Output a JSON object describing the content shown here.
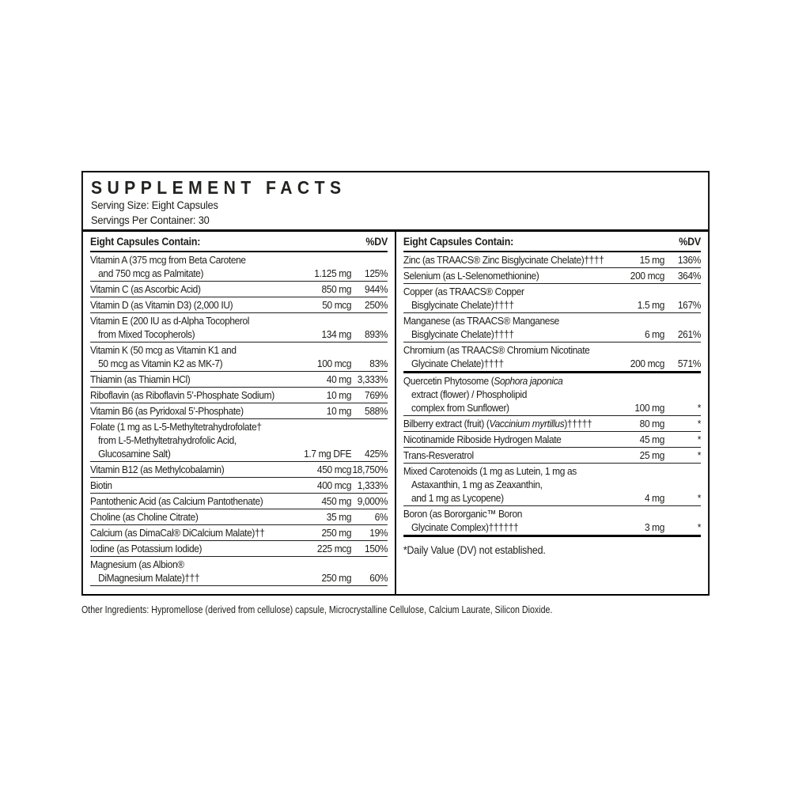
{
  "panel": {
    "title": "SUPPLEMENT FACTS",
    "serving_size": "Serving Size: Eight Capsules",
    "servings": "Servings Per Container: 30",
    "left_column": {
      "header": "Eight Capsules Contain:",
      "dv_header": "%DV",
      "sections": [
        {
          "rows": [
            {
              "lines": [
                {
                  "text": "Vitamin A (375 mcg from Beta Carotene"
                },
                {
                  "text": "and 750 mcg as Palmitate)",
                  "indent": true
                }
              ],
              "amount": "1.125 mg",
              "dv": "125%"
            },
            {
              "lines": [
                {
                  "text": "Vitamin C (as Ascorbic Acid)"
                }
              ],
              "amount": "850 mg",
              "dv": "944%"
            },
            {
              "lines": [
                {
                  "text": "Vitamin D (as Vitamin D3) (2,000 IU)"
                }
              ],
              "amount": "50 mcg",
              "dv": "250%"
            },
            {
              "lines": [
                {
                  "text": "Vitamin E (200 IU as d-Alpha Tocopherol"
                },
                {
                  "text": "from Mixed Tocopherols)",
                  "indent": true
                }
              ],
              "amount": "134 mg",
              "dv": "893%"
            },
            {
              "lines": [
                {
                  "text": "Vitamin K (50 mcg as Vitamin K1 and"
                },
                {
                  "text": "50 mcg as Vitamin K2 as MK-7)",
                  "indent": true
                }
              ],
              "amount": "100 mcg",
              "dv": "83%"
            },
            {
              "lines": [
                {
                  "text": "Thiamin (as Thiamin HCl)"
                }
              ],
              "amount": "40 mg",
              "dv": "3,333%"
            },
            {
              "lines": [
                {
                  "text": "Riboflavin (as Riboflavin 5’-Phosphate Sodium)"
                }
              ],
              "amount": "10 mg",
              "dv": "769%"
            },
            {
              "lines": [
                {
                  "text": "Vitamin B6 (as Pyridoxal 5’-Phosphate)"
                }
              ],
              "amount": "10 mg",
              "dv": "588%"
            },
            {
              "lines": [
                {
                  "text": "Folate (1 mg as L-5-Methyltetrahydrofolate†"
                },
                {
                  "text": "from L-5-Methyltetrahydrofolic Acid,",
                  "indent": true
                },
                {
                  "text": "Glucosamine Salt)",
                  "indent": true
                }
              ],
              "amount": "1.7 mg DFE",
              "dv": "425%"
            },
            {
              "lines": [
                {
                  "text": "Vitamin B12 (as Methylcobalamin)"
                }
              ],
              "amount": "450 mcg",
              "dv": "18,750%"
            },
            {
              "lines": [
                {
                  "text": "Biotin"
                }
              ],
              "amount": "400 mcg",
              "dv": "1,333%"
            },
            {
              "lines": [
                {
                  "text": "Pantothenic Acid (as Calcium Pantothenate)"
                }
              ],
              "amount": "450 mg",
              "dv": "9,000%"
            },
            {
              "lines": [
                {
                  "text": "Choline (as Choline Citrate)"
                }
              ],
              "amount": "35 mg",
              "dv": "6%"
            },
            {
              "lines": [
                {
                  "text": "Calcium (as DimaCal® DiCalcium Malate)††"
                }
              ],
              "amount": "250 mg",
              "dv": "19%"
            },
            {
              "lines": [
                {
                  "text": "Iodine (as Potassium Iodide)"
                }
              ],
              "amount": "225 mcg",
              "dv": "150%"
            },
            {
              "lines": [
                {
                  "text": "Magnesium (as Albion®"
                },
                {
                  "text": "DiMagnesium Malate)†††",
                  "indent": true
                }
              ],
              "amount": "250 mg",
              "dv": "60%"
            }
          ]
        }
      ]
    },
    "right_column": {
      "header": "Eight Capsules Contain:",
      "dv_header": "%DV",
      "sections": [
        {
          "rows": [
            {
              "lines": [
                {
                  "text": "Zinc (as TRAACS® Zinc Bisglycinate Chelate)††††"
                }
              ],
              "amount": "15 mg",
              "dv": "136%"
            },
            {
              "lines": [
                {
                  "text": "Selenium (as L-Selenomethionine)"
                }
              ],
              "amount": "200 mcg",
              "dv": "364%"
            },
            {
              "lines": [
                {
                  "text": "Copper (as TRAACS® Copper"
                },
                {
                  "text": "Bisglycinate Chelate)††††",
                  "indent": true
                }
              ],
              "amount": "1.5 mg",
              "dv": "167%"
            },
            {
              "lines": [
                {
                  "text": "Manganese (as TRAACS® Manganese"
                },
                {
                  "text": "Bisglycinate Chelate)††††",
                  "indent": true
                }
              ],
              "amount": "6 mg",
              "dv": "261%"
            },
            {
              "lines": [
                {
                  "text": "Chromium (as TRAACS® Chromium Nicotinate"
                },
                {
                  "text": "Glycinate Chelate)††††",
                  "indent": true
                }
              ],
              "amount": "200 mcg",
              "dv": "571%"
            }
          ]
        },
        {
          "rows": [
            {
              "lines": [
                {
                  "segments": [
                    {
                      "text": "Quercetin Phytosome ("
                    },
                    {
                      "text": "Sophora japonica",
                      "italic": true
                    }
                  ]
                },
                {
                  "text": "extract (flower) / Phospholipid",
                  "indent": true
                },
                {
                  "text": "complex from Sunflower)",
                  "indent": true
                }
              ],
              "amount": "100 mg",
              "dv": "*"
            },
            {
              "lines": [
                {
                  "segments": [
                    {
                      "text": "Bilberry extract (fruit) ("
                    },
                    {
                      "text": "Vaccinium myrtillus",
                      "italic": true
                    },
                    {
                      "text": ")†††††"
                    }
                  ]
                }
              ],
              "amount": "80 mg",
              "dv": "*"
            },
            {
              "lines": [
                {
                  "text": "Nicotinamide Riboside Hydrogen Malate"
                }
              ],
              "amount": "45 mg",
              "dv": "*"
            },
            {
              "lines": [
                {
                  "text": "Trans-Resveratrol"
                }
              ],
              "amount": "25 mg",
              "dv": "*"
            },
            {
              "lines": [
                {
                  "text": "Mixed Carotenoids (1 mg as Lutein, 1 mg as"
                },
                {
                  "text": "Astaxanthin, 1 mg as Zeaxanthin,",
                  "indent": true
                },
                {
                  "text": "and 1 mg as Lycopene)",
                  "indent": true
                }
              ],
              "amount": "4 mg",
              "dv": "*"
            },
            {
              "lines": [
                {
                  "text": "Boron (as Bororganic™ Boron"
                },
                {
                  "text": "Glycinate Complex)††††††",
                  "indent": true
                }
              ],
              "amount": "3 mg",
              "dv": "*"
            }
          ]
        }
      ],
      "footnote": "*Daily Value (DV) not established."
    },
    "other_ingredients": "Other Ingredients: Hypromellose (derived from cellulose) capsule, Microcrystalline Cellulose, Calcium Laurate, Silicon Dioxide."
  },
  "colors": {
    "text": "#1d1d1b",
    "rule": "#000000",
    "background": "#ffffff"
  }
}
